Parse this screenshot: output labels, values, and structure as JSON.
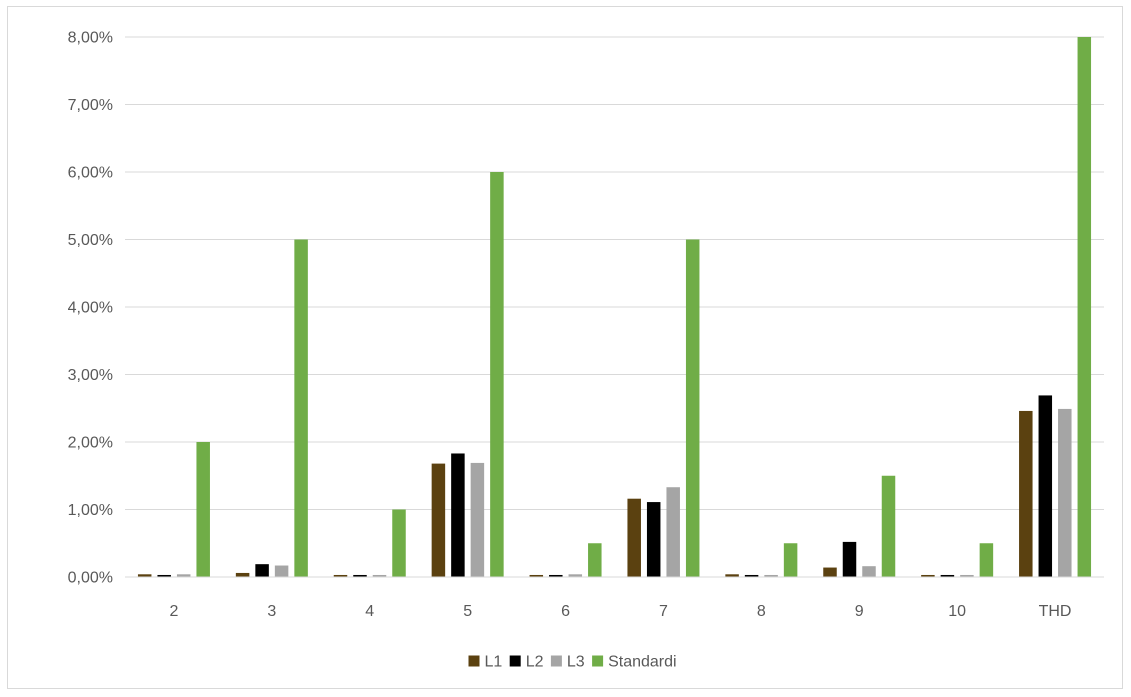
{
  "chart_data": {
    "type": "bar",
    "title": "",
    "xlabel": "",
    "ylabel": "",
    "categories": [
      "2",
      "3",
      "4",
      "5",
      "6",
      "7",
      "8",
      "9",
      "10",
      "THD"
    ],
    "ylim": [
      0,
      8
    ],
    "y_ticks": [
      "0,00%",
      "1,00%",
      "2,00%",
      "3,00%",
      "4,00%",
      "5,00%",
      "6,00%",
      "7,00%",
      "8,00%"
    ],
    "grid": true,
    "legend_position": "bottom",
    "series": [
      {
        "name": "L1",
        "color": "#5b4110",
        "values": [
          0.04,
          0.06,
          0.03,
          1.68,
          0.03,
          1.16,
          0.04,
          0.14,
          0.03,
          2.46
        ]
      },
      {
        "name": "L2",
        "color": "#000000",
        "values": [
          0.03,
          0.19,
          0.03,
          1.83,
          0.03,
          1.11,
          0.03,
          0.52,
          0.03,
          2.69
        ]
      },
      {
        "name": "L3",
        "color": "#a5a5a5",
        "values": [
          0.04,
          0.17,
          0.03,
          1.69,
          0.04,
          1.33,
          0.03,
          0.16,
          0.03,
          2.49
        ]
      },
      {
        "name": "Standardi",
        "color": "#70ad47",
        "values": [
          2.0,
          5.0,
          1.0,
          6.0,
          0.5,
          5.0,
          0.5,
          1.5,
          0.5,
          8.0
        ]
      }
    ]
  }
}
